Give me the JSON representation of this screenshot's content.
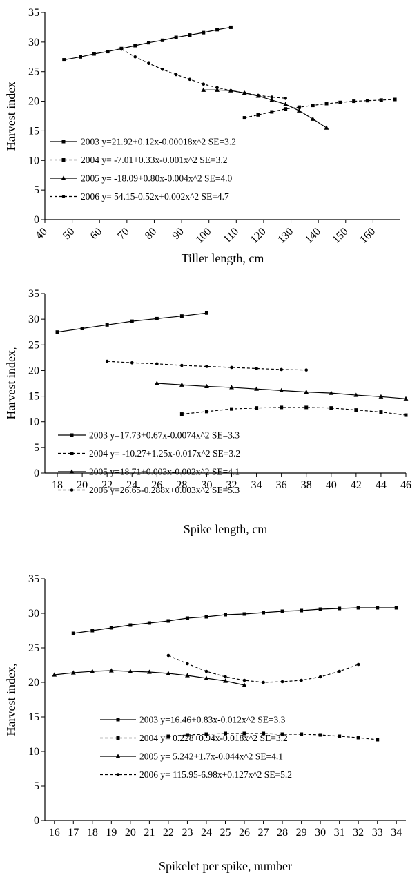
{
  "chart_data": [
    {
      "type": "line",
      "xlabel": "Tiller length, cm",
      "ylabel": "Harvest index",
      "xlim": [
        40,
        170
      ],
      "ylim": [
        0,
        35
      ],
      "xticks": [
        40,
        50,
        60,
        70,
        80,
        90,
        100,
        110,
        120,
        130,
        140,
        150,
        160
      ],
      "yticks": [
        0,
        5,
        10,
        15,
        20,
        25,
        30,
        35
      ],
      "tick_rotation": "rotated",
      "grid": false,
      "legend_position": "bottom-left",
      "series": [
        {
          "name": "2003 y=21.92+0.12x-0.00018x^2 SE=3.2",
          "style": "solid",
          "marker": "square",
          "x": [
            47,
            53,
            58,
            63,
            68,
            73,
            78,
            83,
            88,
            93,
            98,
            103,
            108
          ],
          "y": [
            27.0,
            27.5,
            28.0,
            28.4,
            28.9,
            29.4,
            29.9,
            30.3,
            30.8,
            31.2,
            31.6,
            32.1,
            32.5
          ]
        },
        {
          "name": "2004 y= -7.01+0.33x-0.001x^2 SE=3.2",
          "style": "dashed",
          "marker": "square",
          "x": [
            113,
            118,
            123,
            128,
            133,
            138,
            143,
            148,
            153,
            158,
            163,
            168
          ],
          "y": [
            17.2,
            17.7,
            18.2,
            18.7,
            19.0,
            19.3,
            19.6,
            19.8,
            20.0,
            20.1,
            20.2,
            20.3
          ]
        },
        {
          "name": "2005 y= -18.09+0.80x-0.004x^2 SE=4.0",
          "style": "solid",
          "marker": "triangle",
          "x": [
            98,
            103,
            108,
            113,
            118,
            123,
            128,
            133,
            138,
            143
          ],
          "y": [
            21.9,
            21.9,
            21.8,
            21.4,
            20.9,
            20.2,
            19.5,
            18.4,
            17.0,
            15.5
          ]
        },
        {
          "name": "2006 y= 54.15-0.52x+0.002x^2 SE=4.7",
          "style": "dashed",
          "marker": "circle",
          "x": [
            68,
            73,
            78,
            83,
            88,
            93,
            98,
            103,
            108,
            113,
            118,
            123,
            128
          ],
          "y": [
            28.8,
            27.5,
            26.4,
            25.4,
            24.5,
            23.7,
            22.9,
            22.3,
            21.8,
            21.4,
            21.0,
            20.7,
            20.5
          ]
        }
      ]
    },
    {
      "type": "line",
      "xlabel": "Spike length, cm",
      "ylabel": "Harvest index,",
      "xlim": [
        17,
        46
      ],
      "ylim": [
        0,
        35
      ],
      "xticks": [
        18,
        20,
        22,
        24,
        26,
        28,
        30,
        32,
        34,
        36,
        38,
        40,
        42,
        44,
        46
      ],
      "yticks": [
        0,
        5,
        10,
        15,
        20,
        25,
        30,
        35
      ],
      "grid": false,
      "legend_position": "bottom-left",
      "series": [
        {
          "name": "2003 y=17.73+0.67x-0.0074x^2 SE=3.3",
          "style": "solid",
          "marker": "square",
          "x": [
            18,
            20,
            22,
            24,
            26,
            28,
            30
          ],
          "y": [
            27.5,
            28.2,
            28.9,
            29.6,
            30.1,
            30.6,
            31.2
          ]
        },
        {
          "name": "2004 y= -10.27+1.25x-0.017x^2 SE=3.2",
          "style": "dashed",
          "marker": "square",
          "x": [
            28,
            30,
            32,
            34,
            36,
            38,
            40,
            42,
            44,
            46
          ],
          "y": [
            11.5,
            12.0,
            12.5,
            12.7,
            12.8,
            12.8,
            12.7,
            12.3,
            11.9,
            11.3
          ]
        },
        {
          "name": "2005 y=18.71+0.003x-0.002x^2 SE=4.1",
          "style": "solid",
          "marker": "triangle",
          "x": [
            26,
            28,
            30,
            32,
            34,
            36,
            38,
            40,
            42,
            44,
            46
          ],
          "y": [
            17.5,
            17.2,
            16.9,
            16.7,
            16.4,
            16.1,
            15.8,
            15.6,
            15.2,
            14.9,
            14.5
          ]
        },
        {
          "name": "2006 y=26.65-0.288x+0.003x^2 SE=5.3",
          "style": "dashed",
          "marker": "circle",
          "x": [
            22,
            24,
            26,
            28,
            30,
            32,
            34,
            36,
            38
          ],
          "y": [
            21.8,
            21.5,
            21.3,
            21.0,
            20.8,
            20.6,
            20.4,
            20.2,
            20.1
          ]
        }
      ]
    },
    {
      "type": "line",
      "xlabel": "Spikelet per spike, number",
      "ylabel": "Harvest index,",
      "xlim": [
        15.5,
        34.5
      ],
      "ylim": [
        0,
        35
      ],
      "xticks": [
        16,
        17,
        18,
        19,
        20,
        21,
        22,
        23,
        24,
        25,
        26,
        27,
        28,
        29,
        30,
        31,
        32,
        33,
        34
      ],
      "yticks": [
        0,
        5,
        10,
        15,
        20,
        25,
        30,
        35
      ],
      "grid": false,
      "legend_position": "bottom-center",
      "series": [
        {
          "name": "2003 y=16.46+0.83x-0.012x^2 SE=3.3",
          "style": "solid",
          "marker": "square",
          "x": [
            17,
            18,
            19,
            20,
            21,
            22,
            23,
            24,
            25,
            26,
            27,
            28,
            29,
            30,
            31,
            32,
            33,
            34
          ],
          "y": [
            27.1,
            27.5,
            27.9,
            28.3,
            28.6,
            28.9,
            29.3,
            29.5,
            29.8,
            29.9,
            30.1,
            30.3,
            30.4,
            30.6,
            30.7,
            30.8,
            30.8,
            30.8
          ]
        },
        {
          "name": "2004 y= 0.228+0.94x-0.018x^2 SE=3.2",
          "style": "dashed",
          "marker": "square",
          "x": [
            22,
            23,
            24,
            25,
            26,
            27,
            28,
            29,
            30,
            31,
            32,
            33
          ],
          "y": [
            12.2,
            12.4,
            12.5,
            12.6,
            12.6,
            12.6,
            12.5,
            12.5,
            12.4,
            12.2,
            12.0,
            11.7
          ]
        },
        {
          "name": "2005 y= 5.242+1.7x-0.044x^2 SE=4.1",
          "style": "solid",
          "marker": "triangle",
          "x": [
            16,
            17,
            18,
            19,
            20,
            21,
            22,
            23,
            24,
            25,
            26
          ],
          "y": [
            21.1,
            21.4,
            21.6,
            21.7,
            21.6,
            21.5,
            21.3,
            21.0,
            20.6,
            20.2,
            19.6
          ]
        },
        {
          "name": "2006 y= 115.95-6.98x+0.127x^2 SE=5.2",
          "style": "dashed",
          "marker": "circle",
          "x": [
            22,
            23,
            24,
            25,
            26,
            27,
            28,
            29,
            30,
            31,
            32
          ],
          "y": [
            23.9,
            22.7,
            21.6,
            20.8,
            20.3,
            20.0,
            20.1,
            20.3,
            20.8,
            21.6,
            22.6
          ]
        }
      ]
    }
  ]
}
